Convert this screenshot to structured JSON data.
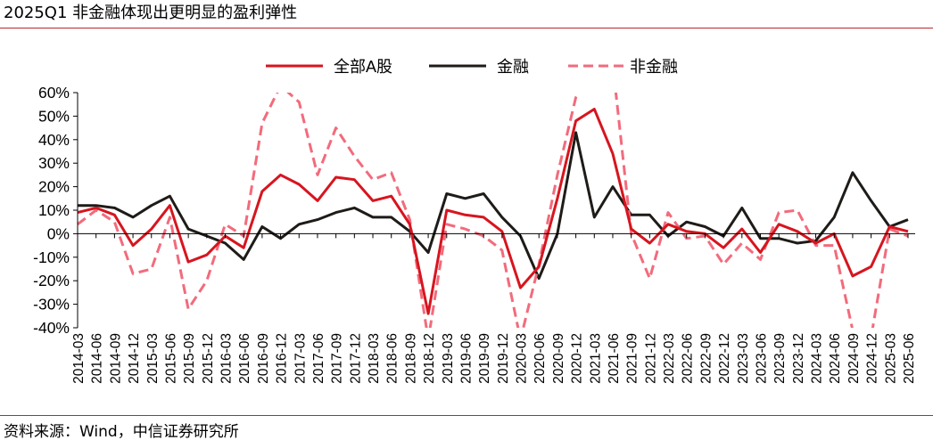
{
  "title": "2025Q1 非金融体现出更明显的盈利弹性",
  "source": "资料来源：Wind，中信证券研究所",
  "colors": {
    "rule": "#b8292f",
    "axis": "#000000"
  },
  "chart_data": {
    "type": "line",
    "x": [
      "2014-03",
      "2014-06",
      "2014-09",
      "2014-12",
      "2015-03",
      "2015-06",
      "2015-09",
      "2015-12",
      "2016-03",
      "2016-06",
      "2016-09",
      "2016-12",
      "2017-03",
      "2017-06",
      "2017-09",
      "2017-12",
      "2018-03",
      "2018-06",
      "2018-09",
      "2018-12",
      "2019-03",
      "2019-06",
      "2019-09",
      "2019-12",
      "2020-03",
      "2020-06",
      "2020-09",
      "2020-12",
      "2021-03",
      "2021-06",
      "2021-09",
      "2021-12",
      "2022-03",
      "2022-06",
      "2022-09",
      "2022-12",
      "2023-03",
      "2023-06",
      "2023-09",
      "2023-12",
      "2024-03",
      "2024-06",
      "2024-09",
      "2024-12",
      "2025-03",
      "2025-06"
    ],
    "tick_labels": [
      "2014-03",
      "2014-06",
      "2014-09",
      "2014-12",
      "2015-03",
      "2015-06",
      "2015-09",
      "2015-12",
      "2016-03",
      "2016-06",
      "2016-09",
      "2016-12",
      "2017-03",
      "2017-06",
      "2017-09",
      "2017-12",
      "2018-03",
      "2018-06",
      "2018-09",
      "2018-12",
      "2019-03",
      "2019-06",
      "2019-09",
      "2019-12",
      "2020-03",
      "2020-06",
      "2020-09",
      "2020-12",
      "2021-03",
      "2021-06",
      "2021-09",
      "2021-12",
      "2022-03",
      "2022-06",
      "2022-09",
      "2022-12",
      "2023-03",
      "2023-06",
      "2023-09",
      "2023-12",
      "2024-03",
      "2024-06",
      "2024-09",
      "2024-12",
      "2025-03",
      "2025-06"
    ],
    "y_ticks": [
      60,
      50,
      40,
      30,
      20,
      10,
      0,
      -10,
      -20,
      -30,
      -40
    ],
    "y_tick_labels": [
      "60%",
      "50%",
      "40%",
      "30%",
      "20%",
      "10%",
      "0%",
      "-10%",
      "-20%",
      "-30%",
      "-40%"
    ],
    "ylim": [
      -40,
      60
    ],
    "grid": false,
    "legend_position": "top-center",
    "series": [
      {
        "name": "全部A股",
        "color": "#d7151f",
        "dash": "solid",
        "values": [
          9,
          11,
          8,
          -5,
          2,
          12,
          -12,
          -9,
          -1,
          -6,
          18,
          25,
          21,
          14,
          24,
          23,
          14,
          16,
          4,
          -34,
          10,
          8,
          7,
          1,
          -23,
          -14,
          15,
          48,
          53,
          34,
          2,
          -4,
          4,
          1,
          0,
          -6,
          2,
          -8,
          4,
          1,
          -4,
          0,
          -18,
          -14,
          3,
          1
        ]
      },
      {
        "name": "金融",
        "color": "#1e1b18",
        "dash": "solid",
        "values": [
          12,
          12,
          11,
          7,
          12,
          16,
          2,
          -1,
          -4,
          -11,
          3,
          -2,
          4,
          6,
          9,
          11,
          7,
          7,
          1,
          -8,
          17,
          15,
          17,
          7,
          -1,
          -19,
          0,
          43,
          7,
          20,
          8,
          8,
          -1,
          5,
          3,
          -1,
          11,
          -2,
          -2,
          -4,
          -3,
          7,
          26,
          14,
          3,
          6
        ]
      },
      {
        "name": "非金融",
        "color": "#f26b7c",
        "dash": "dashed",
        "values": [
          4,
          10,
          5,
          -17,
          -15,
          7,
          -32,
          -20,
          4,
          -1,
          47,
          63,
          56,
          25,
          45,
          33,
          23,
          26,
          6,
          -45,
          4,
          2,
          -1,
          -7,
          -45,
          -13,
          25,
          58,
          72,
          72,
          0,
          -19,
          9,
          -2,
          -1,
          -13,
          -4,
          -11,
          9,
          10,
          -5,
          -5,
          -41,
          -44,
          2,
          -1
        ]
      }
    ]
  }
}
